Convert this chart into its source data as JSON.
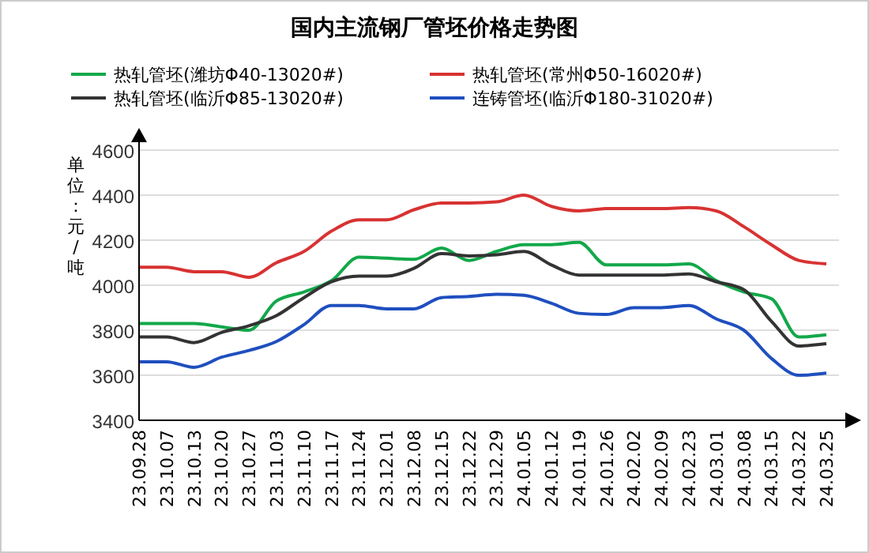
{
  "chart_data": {
    "type": "line",
    "title": "国内主流钢厂管坯价格走势图",
    "ylabel": "单位：元/吨",
    "categories": [
      "23.09.28",
      "23.10.07",
      "23.10.13",
      "23.10.20",
      "23.10.27",
      "23.11.03",
      "23.11.10",
      "23.11.17",
      "23.11.24",
      "23.12.01",
      "23.12.08",
      "23.12.15",
      "23.12.22",
      "23.12.29",
      "24.01.05",
      "24.01.12",
      "24.01.19",
      "24.01.26",
      "24.02.02",
      "24.02.09",
      "24.02.23",
      "24.03.01",
      "24.03.08",
      "24.03.15",
      "24.03.22",
      "24.03.25"
    ],
    "series": [
      {
        "name": "热轧管坯(潍坊Φ40-13020#)",
        "color": "#12a84a",
        "values": [
          3830,
          3830,
          3830,
          3815,
          3800,
          3930,
          3970,
          4020,
          4125,
          4120,
          4115,
          4165,
          4110,
          4150,
          4180,
          4180,
          4190,
          4090,
          4090,
          4090,
          4095,
          4020,
          3970,
          3940,
          3770,
          3780
        ]
      },
      {
        "name": "热轧管坯(常州Φ50-16020#)",
        "color": "#d83232",
        "values": [
          4080,
          4080,
          4060,
          4060,
          4035,
          4100,
          4150,
          4240,
          4290,
          4290,
          4335,
          4365,
          4365,
          4370,
          4400,
          4350,
          4330,
          4340,
          4340,
          4340,
          4345,
          4330,
          4260,
          4180,
          4110,
          4095
        ]
      },
      {
        "name": "热轧管坯(临沂Φ85-13020#)",
        "color": "#333333",
        "values": [
          3770,
          3770,
          3745,
          3790,
          3820,
          3865,
          3945,
          4015,
          4040,
          4040,
          4075,
          4140,
          4130,
          4135,
          4150,
          4090,
          4045,
          4045,
          4045,
          4045,
          4050,
          4015,
          3980,
          3840,
          3730,
          3740
        ]
      },
      {
        "name": "连铸管坯(临沂Φ180-31020#)",
        "color": "#1f4fbf",
        "values": [
          3660,
          3660,
          3635,
          3680,
          3710,
          3750,
          3825,
          3910,
          3910,
          3895,
          3895,
          3945,
          3950,
          3960,
          3955,
          3920,
          3875,
          3870,
          3900,
          3900,
          3910,
          3850,
          3800,
          3675,
          3600,
          3610
        ]
      }
    ],
    "ylim": [
      3400,
      4600
    ],
    "yticks": [
      3400,
      3600,
      3800,
      4000,
      4200,
      4400,
      4600
    ],
    "grid": "y",
    "legend": "top",
    "marker": "none",
    "line_style": "solid"
  }
}
